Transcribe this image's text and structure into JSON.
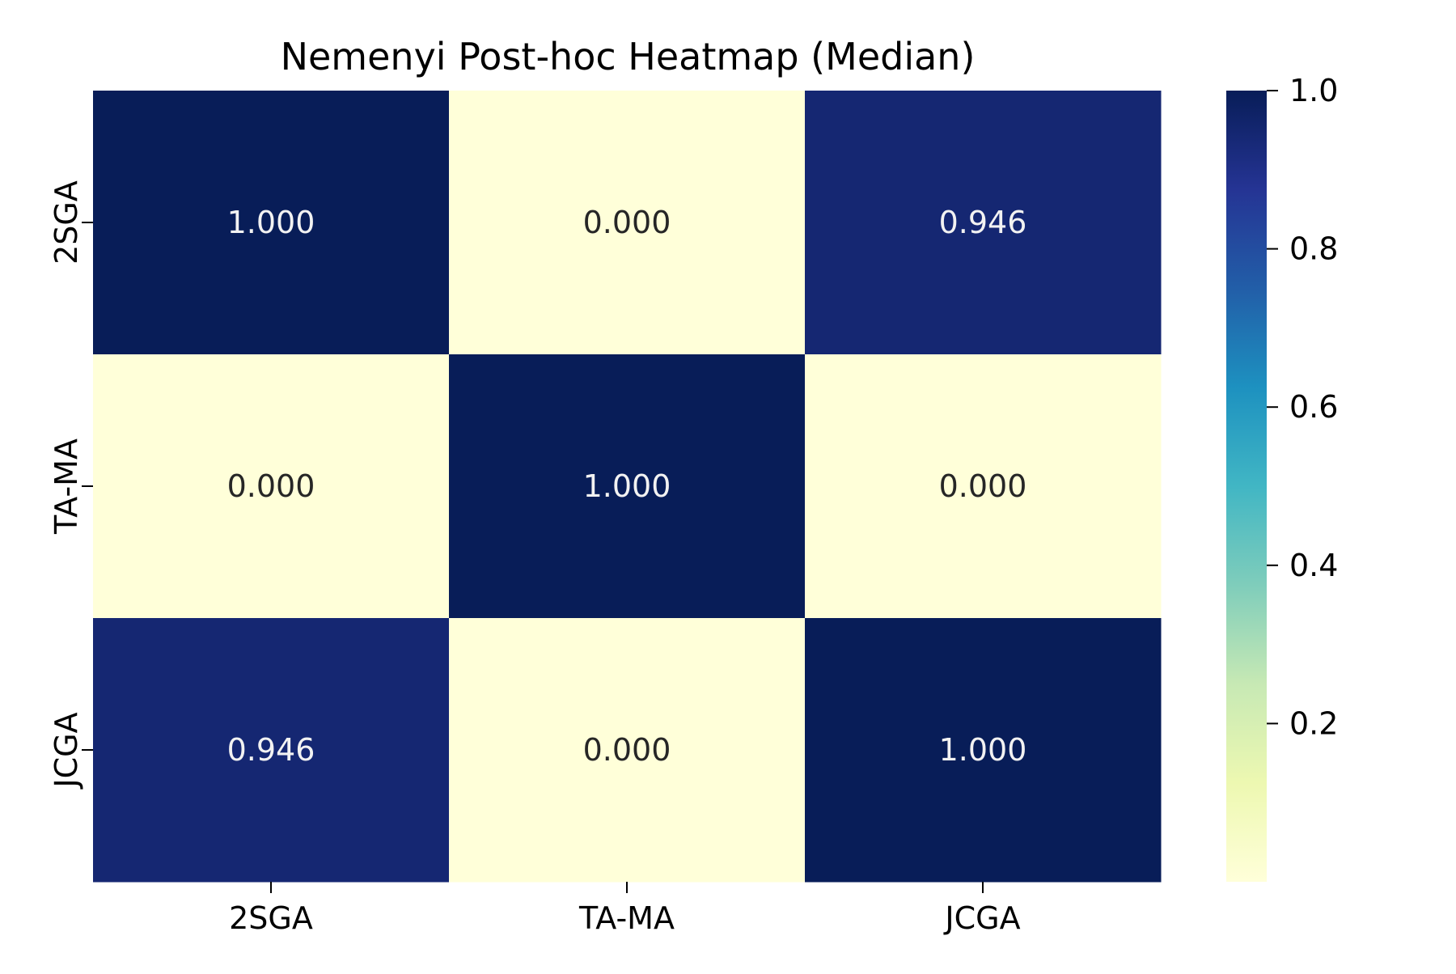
{
  "chart_data": {
    "type": "heatmap",
    "title": "Nemenyi Post-hoc Heatmap (Median)",
    "xlabel": "",
    "ylabel": "",
    "x_categories": [
      "2SGA",
      "TA-MA",
      "JCGA"
    ],
    "y_categories": [
      "2SGA",
      "TA-MA",
      "JCGA"
    ],
    "values": [
      [
        1.0,
        0.0,
        0.946
      ],
      [
        0.0,
        1.0,
        0.0
      ],
      [
        0.946,
        0.0,
        1.0
      ]
    ],
    "value_labels": [
      [
        "1.000",
        "0.000",
        "0.946"
      ],
      [
        "0.000",
        "1.000",
        "0.000"
      ],
      [
        "0.946",
        "0.000",
        "1.000"
      ]
    ],
    "colorbar": {
      "colormap": "YlGnBu",
      "range": [
        0.0,
        1.0
      ],
      "ticks": [
        0.2,
        0.4,
        0.6,
        0.8,
        1.0
      ],
      "tick_labels": [
        "0.2",
        "0.4",
        "0.6",
        "0.8",
        "1.0"
      ],
      "placement": "right"
    },
    "colors": {
      "low": "#ffffd9",
      "high": "#081d58",
      "text_on_dark": "#f2f2f2",
      "text_on_light": "#262626"
    }
  }
}
